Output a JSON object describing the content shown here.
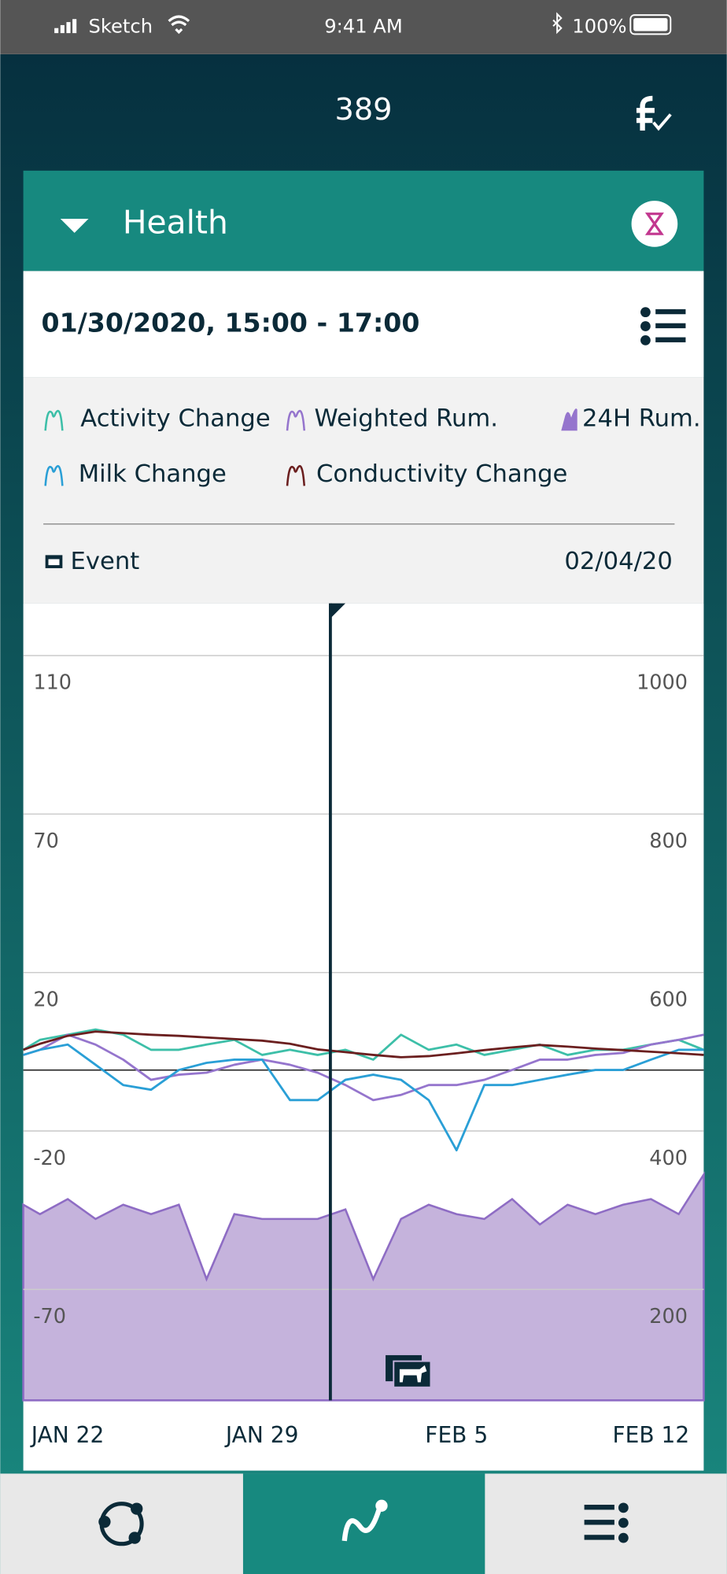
{
  "status_bar": {
    "carrier": "Sketch",
    "time": "9:41 AM",
    "battery": "100%"
  },
  "header": {
    "title": "389"
  },
  "panel": {
    "title": "Health",
    "date_range": "01/30/2020,  15:00 - 17:00"
  },
  "event": {
    "label": "Event",
    "date": "02/04/20"
  },
  "chart_data": {
    "type": "line",
    "x": [
      20.4,
      21,
      22,
      23,
      24,
      25,
      26,
      27,
      28,
      29,
      30,
      31,
      32,
      33,
      34,
      35,
      36,
      37,
      38,
      39,
      40,
      41,
      42,
      43,
      44,
      44.9
    ],
    "xlim": [
      20.4,
      44.9
    ],
    "xticks": [
      {
        "value": 22,
        "label": "JAN 22"
      },
      {
        "value": 29,
        "label": "JAN 29"
      },
      {
        "value": 36,
        "label": "FEB 5"
      },
      {
        "value": 43,
        "label": "FEB 12"
      }
    ],
    "ylim": [
      -105,
      123
    ],
    "yticks": [
      -70,
      -20,
      20,
      70,
      110
    ],
    "y2lim": [
      60,
      1066
    ],
    "y2ticks": [
      200,
      400,
      600,
      800,
      1000
    ],
    "grid": true,
    "series": [
      {
        "name": "Activity Change",
        "color": "#3dbfa8",
        "values": [
          0.5,
          3.0,
          4.3,
          5.6,
          4.3,
          0.5,
          0.5,
          1.8,
          3.0,
          -0.8,
          0.5,
          -0.8,
          0.5,
          -2.0,
          4.3,
          0.5,
          1.8,
          -0.8,
          0.5,
          1.8,
          -0.8,
          0.5,
          0.5,
          1.8,
          3.0,
          0.5
        ]
      },
      {
        "name": "Weighted Rum.",
        "color": "#9575cd",
        "values": [
          -0.8,
          0.5,
          4.3,
          1.8,
          -2.0,
          -7.1,
          -5.8,
          -5.3,
          -3.3,
          -2.0,
          -3.3,
          -5.3,
          -8.4,
          -12.2,
          -10.9,
          -8.4,
          -8.4,
          -7.1,
          -4.6,
          -2.0,
          -2.0,
          -0.8,
          -0.3,
          1.8,
          3.0,
          4.3
        ]
      },
      {
        "name": "24H Rum.",
        "color": "#c5b3dc",
        "axis": "y2",
        "values": [
          307,
          295,
          314,
          289,
          307,
          295,
          307,
          213,
          295,
          289,
          289,
          289,
          301,
          213,
          289,
          307,
          295,
          289,
          314,
          282,
          307,
          295,
          307,
          314,
          295,
          345
        ]
      },
      {
        "name": "Milk Change",
        "color": "#2a9fd6",
        "values": [
          -0.8,
          0.5,
          1.8,
          -3.3,
          -8.4,
          -9.6,
          -4.6,
          -2.8,
          -2.0,
          -2.0,
          -12.2,
          -12.2,
          -7.1,
          -5.8,
          -7.1,
          -12.2,
          -26.1,
          -8.4,
          -8.4,
          -7.1,
          -5.8,
          -4.6,
          -4.6,
          -2.0,
          0.5,
          0.5
        ]
      },
      {
        "name": "Conductivity Change",
        "color": "#6b1f1f",
        "values": [
          0.5,
          2.0,
          4.0,
          5.1,
          4.7,
          4.3,
          4.0,
          3.6,
          3.2,
          2.8,
          2.0,
          0.6,
          -0.1,
          -0.8,
          -1.4,
          -1.1,
          -0.4,
          0.4,
          1.1,
          1.7,
          1.3,
          0.8,
          0.4,
          0.0,
          -0.4,
          -0.8
        ]
      }
    ]
  }
}
